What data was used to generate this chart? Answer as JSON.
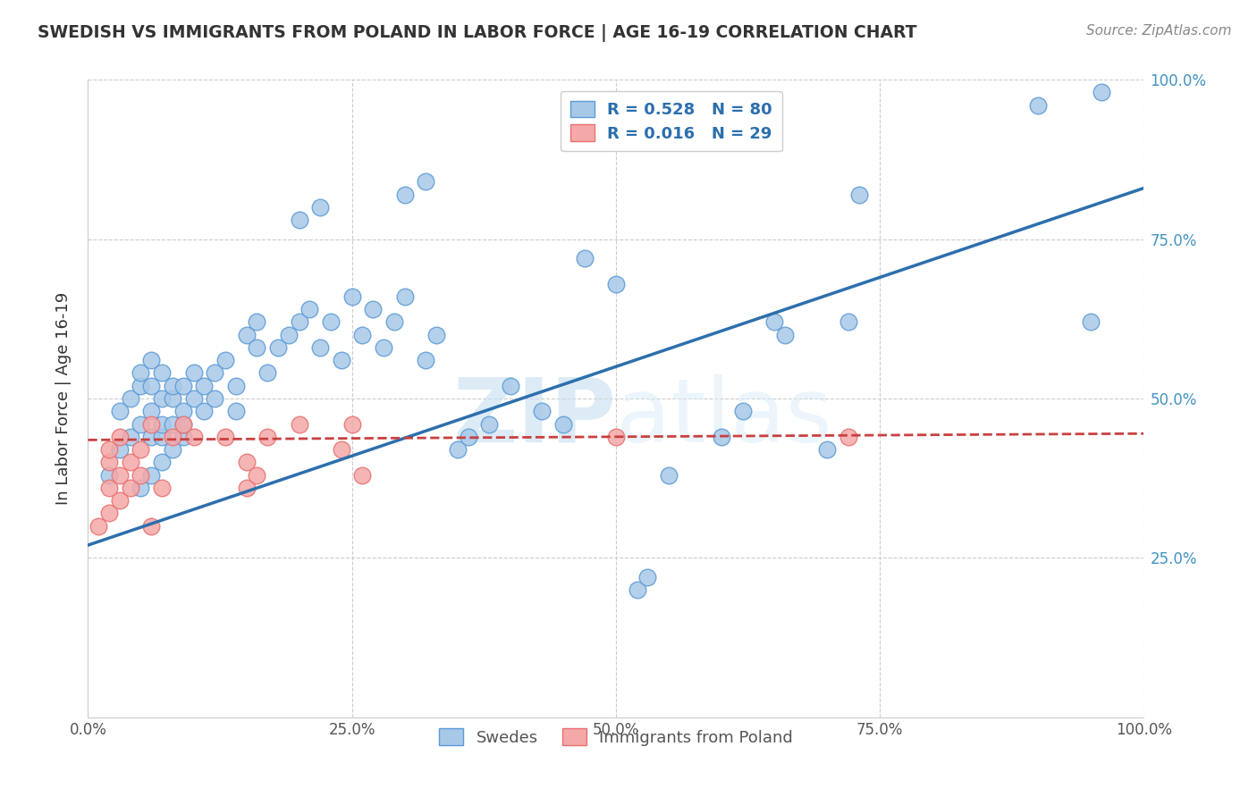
{
  "title": "SWEDISH VS IMMIGRANTS FROM POLAND IN LABOR FORCE | AGE 16-19 CORRELATION CHART",
  "source": "Source: ZipAtlas.com",
  "ylabel": "In Labor Force | Age 16-19",
  "x_tick_labels": [
    "0.0%",
    "25.0%",
    "50.0%",
    "75.0%",
    "100.0%"
  ],
  "legend_labels": [
    "Swedes",
    "Immigrants from Poland"
  ],
  "legend_r_blue": "R = 0.528",
  "legend_n_blue": "N = 80",
  "legend_r_pink": "R = 0.016",
  "legend_n_pink": "N = 29",
  "blue_color": "#a8c8e8",
  "pink_color": "#f4a8a8",
  "blue_edge_color": "#5b9bd5",
  "pink_edge_color": "#e87070",
  "blue_line_color": "#2c6fad",
  "pink_line_color": "#c94040",
  "watermark_color": "#dceef8",
  "background_color": "#ffffff",
  "grid_color": "#cccccc",
  "title_color": "#333333",
  "right_tick_color": "#4393c3",
  "source_color": "#888888",
  "blue_scatter": [
    [
      0.02,
      0.38
    ],
    [
      0.03,
      0.42
    ],
    [
      0.03,
      0.48
    ],
    [
      0.04,
      0.44
    ],
    [
      0.04,
      0.5
    ],
    [
      0.05,
      0.36
    ],
    [
      0.05,
      0.46
    ],
    [
      0.05,
      0.52
    ],
    [
      0.05,
      0.54
    ],
    [
      0.06,
      0.38
    ],
    [
      0.06,
      0.44
    ],
    [
      0.06,
      0.48
    ],
    [
      0.06,
      0.52
    ],
    [
      0.06,
      0.56
    ],
    [
      0.07,
      0.4
    ],
    [
      0.07,
      0.44
    ],
    [
      0.07,
      0.46
    ],
    [
      0.07,
      0.5
    ],
    [
      0.07,
      0.54
    ],
    [
      0.08,
      0.42
    ],
    [
      0.08,
      0.46
    ],
    [
      0.08,
      0.5
    ],
    [
      0.08,
      0.52
    ],
    [
      0.09,
      0.44
    ],
    [
      0.09,
      0.46
    ],
    [
      0.09,
      0.48
    ],
    [
      0.09,
      0.52
    ],
    [
      0.1,
      0.5
    ],
    [
      0.1,
      0.54
    ],
    [
      0.11,
      0.48
    ],
    [
      0.11,
      0.52
    ],
    [
      0.12,
      0.5
    ],
    [
      0.12,
      0.54
    ],
    [
      0.13,
      0.56
    ],
    [
      0.14,
      0.48
    ],
    [
      0.14,
      0.52
    ],
    [
      0.15,
      0.6
    ],
    [
      0.16,
      0.58
    ],
    [
      0.16,
      0.62
    ],
    [
      0.17,
      0.54
    ],
    [
      0.18,
      0.58
    ],
    [
      0.19,
      0.6
    ],
    [
      0.2,
      0.62
    ],
    [
      0.21,
      0.64
    ],
    [
      0.22,
      0.58
    ],
    [
      0.23,
      0.62
    ],
    [
      0.24,
      0.56
    ],
    [
      0.25,
      0.66
    ],
    [
      0.26,
      0.6
    ],
    [
      0.27,
      0.64
    ],
    [
      0.28,
      0.58
    ],
    [
      0.29,
      0.62
    ],
    [
      0.3,
      0.66
    ],
    [
      0.32,
      0.56
    ],
    [
      0.33,
      0.6
    ],
    [
      0.35,
      0.42
    ],
    [
      0.36,
      0.44
    ],
    [
      0.38,
      0.46
    ],
    [
      0.4,
      0.52
    ],
    [
      0.43,
      0.48
    ],
    [
      0.45,
      0.46
    ],
    [
      0.47,
      0.72
    ],
    [
      0.5,
      0.68
    ],
    [
      0.52,
      0.2
    ],
    [
      0.53,
      0.22
    ],
    [
      0.55,
      0.38
    ],
    [
      0.6,
      0.44
    ],
    [
      0.62,
      0.48
    ],
    [
      0.65,
      0.62
    ],
    [
      0.66,
      0.6
    ],
    [
      0.7,
      0.42
    ],
    [
      0.72,
      0.62
    ],
    [
      0.73,
      0.82
    ],
    [
      0.2,
      0.78
    ],
    [
      0.22,
      0.8
    ],
    [
      0.3,
      0.82
    ],
    [
      0.32,
      0.84
    ],
    [
      0.9,
      0.96
    ],
    [
      0.96,
      0.98
    ],
    [
      0.95,
      0.62
    ]
  ],
  "pink_scatter": [
    [
      0.01,
      0.3
    ],
    [
      0.02,
      0.32
    ],
    [
      0.02,
      0.36
    ],
    [
      0.02,
      0.4
    ],
    [
      0.02,
      0.42
    ],
    [
      0.03,
      0.34
    ],
    [
      0.03,
      0.38
    ],
    [
      0.03,
      0.44
    ],
    [
      0.04,
      0.36
    ],
    [
      0.04,
      0.4
    ],
    [
      0.05,
      0.38
    ],
    [
      0.05,
      0.42
    ],
    [
      0.06,
      0.3
    ],
    [
      0.06,
      0.46
    ],
    [
      0.07,
      0.36
    ],
    [
      0.08,
      0.44
    ],
    [
      0.09,
      0.46
    ],
    [
      0.1,
      0.44
    ],
    [
      0.13,
      0.44
    ],
    [
      0.15,
      0.36
    ],
    [
      0.15,
      0.4
    ],
    [
      0.16,
      0.38
    ],
    [
      0.17,
      0.44
    ],
    [
      0.2,
      0.46
    ],
    [
      0.24,
      0.42
    ],
    [
      0.25,
      0.46
    ],
    [
      0.26,
      0.38
    ],
    [
      0.5,
      0.44
    ],
    [
      0.72,
      0.44
    ]
  ],
  "blue_line_x": [
    0.0,
    1.0
  ],
  "blue_line_y": [
    0.27,
    0.83
  ],
  "pink_line_x": [
    0.0,
    1.0
  ],
  "pink_line_y": [
    0.435,
    0.445
  ],
  "xlim": [
    0.0,
    1.0
  ],
  "ylim": [
    0.0,
    1.0
  ]
}
